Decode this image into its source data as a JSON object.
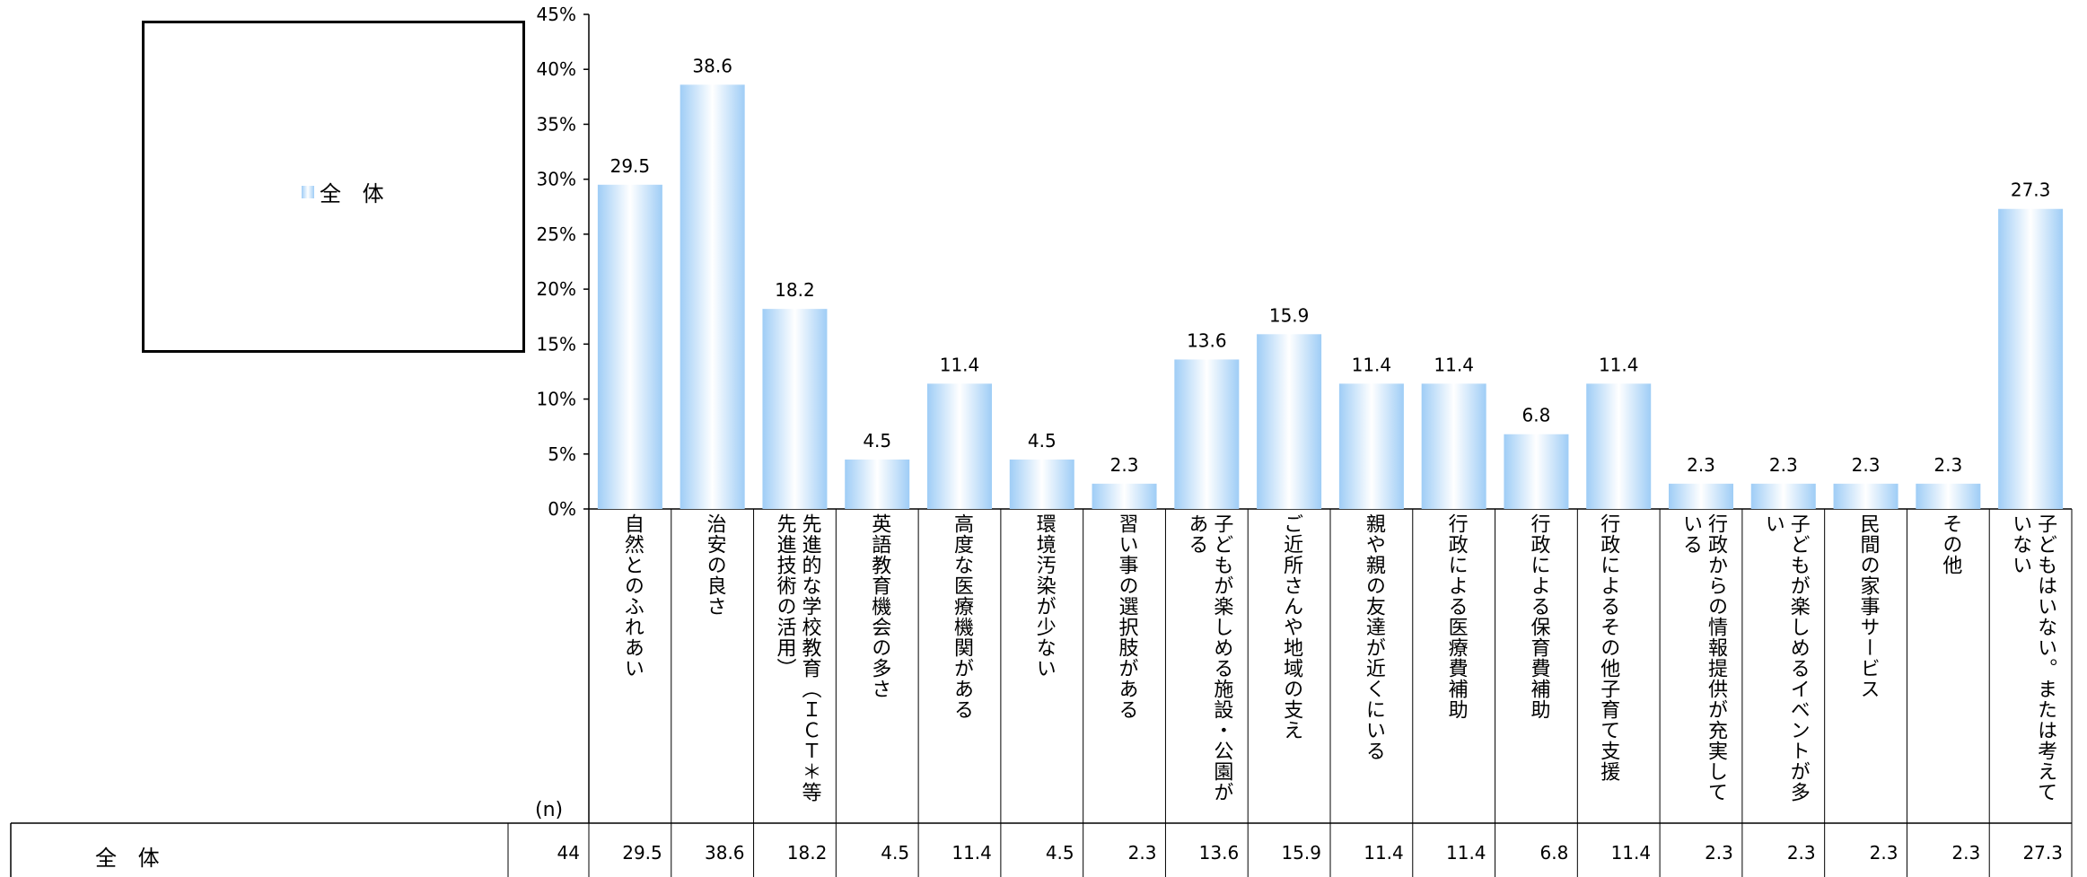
{
  "chart_data": {
    "type": "bar",
    "legend": {
      "series_name": "全 体",
      "placement": "left-box"
    },
    "ylim": [
      0,
      45
    ],
    "yticks": [
      "0%",
      "5%",
      "10%",
      "15%",
      "20%",
      "25%",
      "30%",
      "35%",
      "40%",
      "45%"
    ],
    "yticks_values": [
      0,
      5,
      10,
      15,
      20,
      25,
      30,
      35,
      40,
      45
    ],
    "categories": [
      "自然とのふれあい",
      "治安の良さ",
      "先進的な学校教育（ＩＣＴ＊等先進技術の活用）",
      "英語教育機会の多さ",
      "高度な医療機関がある",
      "環境汚染が少ない",
      "習い事の選択肢がある",
      "子どもが楽しめる施設・公園がある",
      "ご近所さんや地域の支え",
      "親や親の友達が近くにいる",
      "行政による医療費補助",
      "行政による保育費補助",
      "行政によるその他子育て支援",
      "行政からの情報提供が充実している",
      "子どもが楽しめるイベントが多い",
      "民間の家事サービス",
      "その他",
      "子どもはいない。または考えていない"
    ],
    "series": [
      {
        "name": "全 体",
        "values": [
          29.5,
          38.6,
          18.2,
          4.5,
          11.4,
          4.5,
          2.3,
          13.6,
          15.9,
          11.4,
          11.4,
          6.8,
          11.4,
          2.3,
          2.3,
          2.3,
          2.3,
          27.3
        ]
      }
    ],
    "data_labels": [
      "29.5",
      "38.6",
      "18.2",
      "4.5",
      "11.4",
      "4.5",
      "2.3",
      "13.6",
      "15.9",
      "11.4",
      "11.4",
      "6.8",
      "11.4",
      "2.3",
      "2.3",
      "2.3",
      "2.3",
      "27.3"
    ],
    "table": {
      "n_header": "(n)",
      "row_label": "全 体",
      "n": "44",
      "cells": [
        "29.5",
        "38.6",
        "18.2",
        "4.5",
        "11.4",
        "4.5",
        "2.3",
        "13.6",
        "15.9",
        "11.4",
        "11.4",
        "6.8",
        "11.4",
        "2.3",
        "2.3",
        "2.3",
        "2.3",
        "27.3"
      ]
    },
    "colors": {
      "bar_edge": "#9fcdf6",
      "bar_center": "#ffffff",
      "axis": "#000000"
    }
  }
}
